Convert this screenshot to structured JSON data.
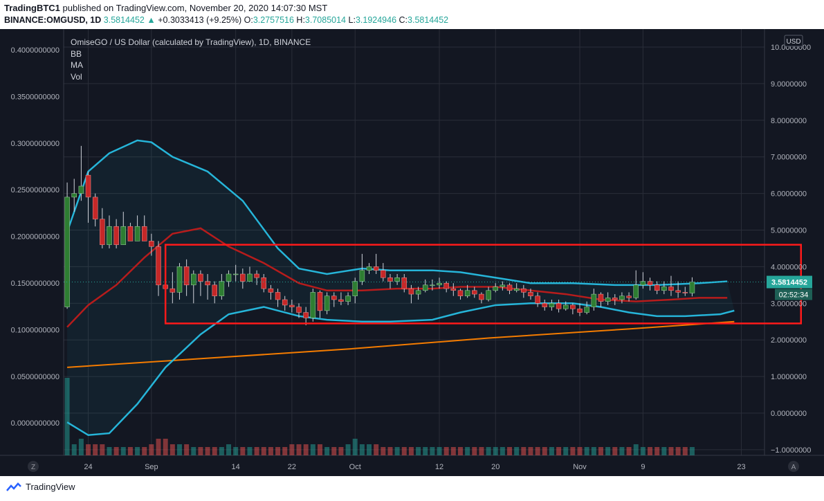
{
  "header": {
    "publisher": "TradingBTC1",
    "publish_line": " published on TradingView.com, November 20, 2020 14:07:30 MST",
    "symbol": "BINANCE:OMGUSD, 1D",
    "last": "3.5814452",
    "change": "+0.3033413 (+9.25%)",
    "o_label": "O:",
    "o": "3.2757516",
    "h_label": "H:",
    "h": "3.7085014",
    "l_label": "L:",
    "l": "3.1924946",
    "c_label": "C:",
    "c": "3.5814452"
  },
  "chart_data": {
    "type": "candlestick",
    "title": "OmiseGO / US Dollar (calculated by TradingView), 1D, BINANCE",
    "indicators": [
      "BB",
      "MA",
      "Vol"
    ],
    "currency_label": "USD",
    "y_right_ticks": [
      "10.0000000",
      "9.0000000",
      "8.0000000",
      "7.0000000",
      "6.0000000",
      "5.0000000",
      "4.0000000",
      "3.0000000",
      "2.0000000",
      "1.0000000",
      "0.0000000",
      "−1.0000000"
    ],
    "y_right_tick_values": [
      10,
      9,
      8,
      7,
      6,
      5,
      4,
      3,
      2,
      1,
      0,
      -1
    ],
    "y_left_ticks": [
      "0.4000000000",
      "0.3500000000",
      "0.3000000000",
      "0.2500000000",
      "0.2000000000",
      "0.1500000000",
      "0.1000000000",
      "0.0500000000",
      "0.0000000000"
    ],
    "y_left_tick_values": [
      0.4,
      0.35,
      0.3,
      0.25,
      0.2,
      0.15,
      0.1,
      0.05,
      0.0
    ],
    "x_ticks": [
      "24",
      "Sep",
      "14",
      "22",
      "Oct",
      "12",
      "20",
      "Nov",
      "9",
      "23"
    ],
    "x_tick_days": [
      3,
      12,
      24,
      32,
      41,
      53,
      61,
      73,
      82,
      96
    ],
    "ylim": [
      -1.1,
      10.7
    ],
    "xlim": [
      0,
      105
    ],
    "last_price_label": "3.5814452",
    "countdown_label": "02:52:34",
    "candles": [
      [
        2.9,
        5.9,
        6.3,
        2.85
      ],
      [
        5.9,
        6.0,
        6.4,
        5.5
      ],
      [
        6.0,
        6.2,
        7.3,
        5.8
      ],
      [
        6.5,
        5.9,
        6.6,
        5.2
      ],
      [
        5.9,
        5.3,
        6.0,
        5.1
      ],
      [
        5.3,
        4.6,
        5.6,
        4.5
      ],
      [
        4.6,
        5.1,
        5.4,
        4.5
      ],
      [
        5.1,
        4.6,
        5.3,
        4.5
      ],
      [
        4.6,
        5.1,
        5.5,
        4.6
      ],
      [
        5.1,
        4.7,
        5.2,
        4.7
      ],
      [
        4.7,
        5.1,
        5.4,
        4.7
      ],
      [
        5.1,
        4.7,
        5.4,
        4.7
      ],
      [
        4.7,
        4.55,
        4.9,
        4.3
      ],
      [
        4.55,
        3.5,
        4.7,
        3.2
      ],
      [
        3.5,
        3.4,
        3.8,
        3.05
      ],
      [
        3.4,
        3.3,
        3.85,
        3.0
      ],
      [
        3.3,
        4.0,
        4.1,
        3.1
      ],
      [
        4.0,
        3.5,
        4.2,
        3.2
      ],
      [
        3.5,
        3.8,
        3.9,
        3.0
      ],
      [
        3.8,
        3.6,
        3.9,
        3.2
      ],
      [
        3.6,
        3.5,
        3.8,
        3.1
      ],
      [
        3.5,
        3.2,
        3.6,
        3.0
      ],
      [
        3.2,
        3.6,
        3.8,
        3.1
      ],
      [
        3.6,
        3.8,
        3.9,
        3.45
      ],
      [
        3.8,
        3.8,
        4.05,
        3.6
      ],
      [
        3.8,
        3.6,
        3.95,
        3.4
      ],
      [
        3.6,
        3.8,
        4.0,
        3.6
      ],
      [
        3.8,
        3.7,
        3.9,
        3.5
      ],
      [
        3.7,
        3.4,
        3.8,
        3.3
      ],
      [
        3.4,
        3.3,
        3.5,
        3.1
      ],
      [
        3.3,
        3.1,
        3.4,
        2.9
      ],
      [
        3.1,
        2.95,
        3.2,
        2.8
      ],
      [
        2.95,
        2.9,
        3.1,
        2.75
      ],
      [
        2.9,
        2.75,
        3.0,
        2.6
      ],
      [
        2.75,
        2.6,
        2.9,
        2.4
      ],
      [
        2.6,
        3.3,
        3.4,
        2.5
      ],
      [
        3.3,
        2.8,
        3.35,
        2.6
      ],
      [
        2.8,
        3.2,
        3.3,
        2.7
      ],
      [
        3.2,
        3.1,
        3.3,
        2.9
      ],
      [
        3.1,
        3.05,
        3.3,
        2.95
      ],
      [
        3.05,
        3.2,
        3.3,
        2.95
      ],
      [
        3.2,
        3.6,
        3.7,
        3.0
      ],
      [
        3.6,
        3.9,
        4.35,
        3.5
      ],
      [
        3.9,
        4.0,
        4.1,
        3.8
      ],
      [
        4.0,
        3.9,
        4.35,
        3.8
      ],
      [
        3.9,
        3.7,
        4.1,
        3.6
      ],
      [
        3.7,
        3.6,
        3.8,
        3.4
      ],
      [
        3.6,
        3.7,
        3.8,
        3.5
      ],
      [
        3.7,
        3.4,
        3.8,
        3.3
      ],
      [
        3.4,
        3.25,
        3.5,
        3.0
      ],
      [
        3.25,
        3.35,
        3.45,
        3.1
      ],
      [
        3.35,
        3.5,
        3.65,
        3.3
      ],
      [
        3.5,
        3.5,
        3.65,
        3.35
      ],
      [
        3.5,
        3.55,
        3.7,
        3.4
      ],
      [
        3.55,
        3.4,
        3.6,
        3.3
      ],
      [
        3.4,
        3.35,
        3.55,
        3.2
      ],
      [
        3.35,
        3.2,
        3.4,
        3.1
      ],
      [
        3.2,
        3.35,
        3.5,
        3.15
      ],
      [
        3.35,
        3.25,
        3.45,
        3.15
      ],
      [
        3.25,
        3.1,
        3.3,
        3.0
      ],
      [
        3.1,
        3.35,
        3.45,
        3.05
      ],
      [
        3.35,
        3.45,
        3.55,
        3.3
      ],
      [
        3.45,
        3.5,
        3.6,
        3.35
      ],
      [
        3.5,
        3.35,
        3.55,
        3.25
      ],
      [
        3.35,
        3.4,
        3.55,
        3.3
      ],
      [
        3.4,
        3.3,
        3.5,
        3.15
      ],
      [
        3.3,
        3.2,
        3.4,
        3.1
      ],
      [
        3.2,
        3.0,
        3.3,
        2.9
      ],
      [
        3.0,
        2.9,
        3.1,
        2.8
      ],
      [
        2.9,
        3.0,
        3.1,
        2.8
      ],
      [
        3.0,
        2.85,
        3.1,
        2.75
      ],
      [
        2.85,
        2.95,
        3.05,
        2.8
      ],
      [
        2.95,
        2.85,
        3.0,
        2.7
      ],
      [
        2.85,
        2.75,
        3.0,
        2.65
      ],
      [
        2.75,
        2.9,
        3.05,
        2.7
      ],
      [
        2.9,
        3.25,
        3.4,
        2.8
      ],
      [
        3.25,
        3.05,
        3.3,
        2.9
      ],
      [
        3.05,
        3.15,
        3.3,
        2.95
      ],
      [
        3.15,
        3.1,
        3.25,
        2.95
      ],
      [
        3.1,
        3.2,
        3.3,
        3.0
      ],
      [
        3.2,
        3.15,
        3.3,
        3.05
      ],
      [
        3.15,
        3.5,
        3.9,
        3.1
      ],
      [
        3.5,
        3.6,
        3.85,
        3.4
      ],
      [
        3.6,
        3.5,
        3.7,
        3.35
      ],
      [
        3.5,
        3.35,
        3.6,
        3.25
      ],
      [
        3.35,
        3.45,
        3.6,
        3.25
      ],
      [
        3.45,
        3.35,
        3.75,
        3.2
      ],
      [
        3.35,
        3.3,
        3.6,
        3.15
      ],
      [
        3.3,
        3.28,
        3.45,
        3.2
      ],
      [
        3.28,
        3.58,
        3.71,
        3.19
      ]
    ],
    "volume": [
      14,
      2,
      3,
      2,
      2,
      2,
      1.5,
      1.5,
      1.5,
      1.5,
      1.5,
      1.5,
      2,
      3,
      3,
      2,
      2,
      2,
      1.5,
      1.5,
      1.5,
      1.5,
      1.5,
      2,
      1.5,
      1.5,
      1.5,
      1.5,
      1.5,
      1.5,
      1.5,
      1.5,
      2,
      2,
      2,
      2,
      2,
      1.5,
      1.5,
      1.5,
      2,
      3,
      2,
      2,
      2,
      1.5,
      1.5,
      1.5,
      1.5,
      1.5,
      1.5,
      1.5,
      1.5,
      1.5,
      1.5,
      1.5,
      1.5,
      1.5,
      1.5,
      1.5,
      1.5,
      1.5,
      1.5,
      1.5,
      1.5,
      1.5,
      1.5,
      1.5,
      1.5,
      1.5,
      1.5,
      1.5,
      1.5,
      1.5,
      1.5,
      1.5,
      1.5,
      1.5,
      1.5,
      1.5,
      1.5,
      2,
      1.5,
      1.5,
      1.5,
      1.5,
      1.5,
      1.5,
      1.5,
      1.5
    ],
    "bb_upper": [
      [
        0,
        4.95
      ],
      [
        3,
        6.6
      ],
      [
        6,
        7.1
      ],
      [
        10,
        7.45
      ],
      [
        12,
        7.4
      ],
      [
        15,
        7.0
      ],
      [
        20,
        6.6
      ],
      [
        25,
        5.8
      ],
      [
        30,
        4.5
      ],
      [
        33,
        3.95
      ],
      [
        37,
        3.8
      ],
      [
        42,
        3.95
      ],
      [
        46,
        3.9
      ],
      [
        52,
        3.9
      ],
      [
        56,
        3.85
      ],
      [
        61,
        3.7
      ],
      [
        66,
        3.55
      ],
      [
        72,
        3.55
      ],
      [
        78,
        3.5
      ],
      [
        84,
        3.5
      ],
      [
        90,
        3.55
      ],
      [
        94,
        3.6
      ]
    ],
    "bb_basis": [
      [
        0,
        2.35
      ],
      [
        3,
        2.95
      ],
      [
        7,
        3.5
      ],
      [
        11,
        4.25
      ],
      [
        15,
        4.9
      ],
      [
        19,
        5.05
      ],
      [
        23,
        4.55
      ],
      [
        28,
        4.1
      ],
      [
        33,
        3.55
      ],
      [
        37,
        3.35
      ],
      [
        42,
        3.35
      ],
      [
        47,
        3.4
      ],
      [
        52,
        3.4
      ],
      [
        56,
        3.45
      ],
      [
        61,
        3.45
      ],
      [
        66,
        3.35
      ],
      [
        71,
        3.25
      ],
      [
        76,
        3.1
      ],
      [
        81,
        3.05
      ],
      [
        86,
        3.1
      ],
      [
        90,
        3.15
      ],
      [
        94,
        3.15
      ]
    ],
    "bb_lower": [
      [
        0,
        -0.25
      ],
      [
        3,
        -0.6
      ],
      [
        6,
        -0.55
      ],
      [
        10,
        0.25
      ],
      [
        14,
        1.25
      ],
      [
        19,
        2.15
      ],
      [
        23,
        2.7
      ],
      [
        28,
        2.9
      ],
      [
        33,
        2.65
      ],
      [
        37,
        2.55
      ],
      [
        42,
        2.5
      ],
      [
        46,
        2.5
      ],
      [
        52,
        2.55
      ],
      [
        56,
        2.75
      ],
      [
        61,
        2.95
      ],
      [
        66,
        3.0
      ],
      [
        72,
        3.0
      ],
      [
        76,
        2.9
      ],
      [
        80,
        2.75
      ],
      [
        84,
        2.65
      ],
      [
        88,
        2.65
      ],
      [
        93,
        2.7
      ],
      [
        95,
        2.8
      ]
    ],
    "ma": [
      [
        0,
        1.25
      ],
      [
        20,
        1.5
      ],
      [
        40,
        1.75
      ],
      [
        60,
        2.05
      ],
      [
        80,
        2.3
      ],
      [
        95,
        2.5
      ]
    ],
    "annotation_rect": {
      "x0": 14.5,
      "x1": 105,
      "y0": 2.45,
      "y1": 4.6
    }
  }
}
